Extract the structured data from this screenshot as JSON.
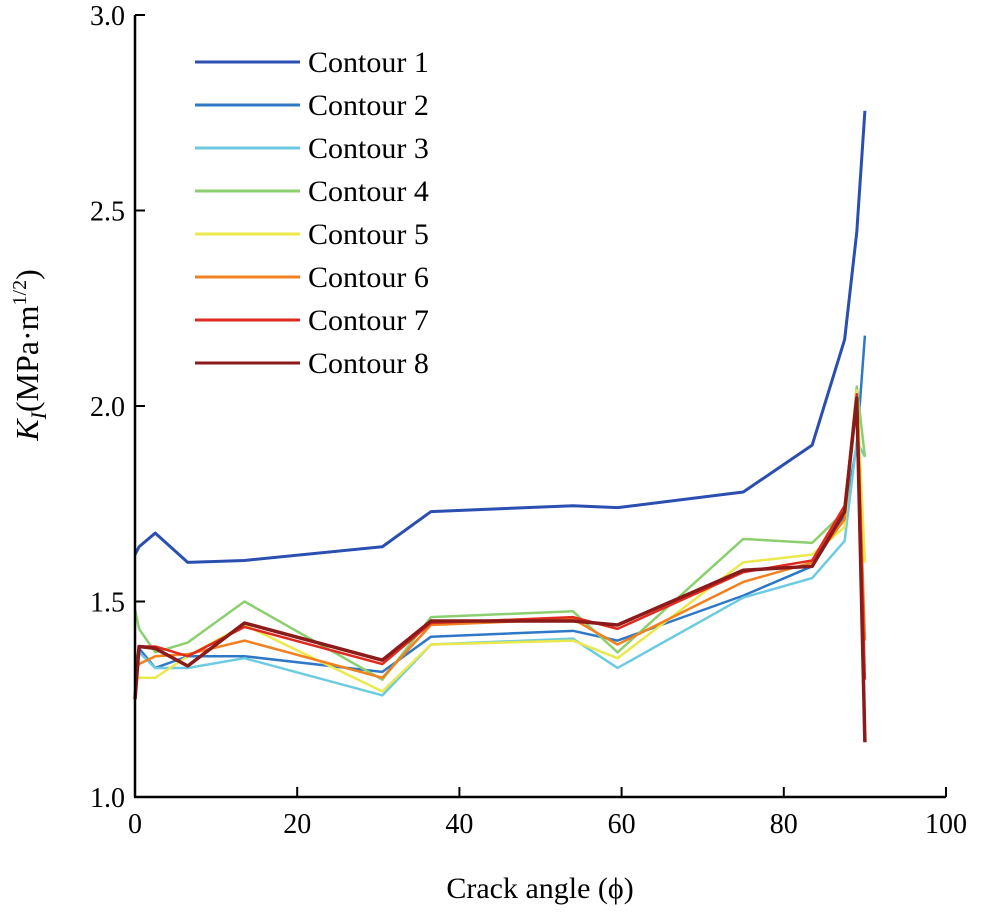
{
  "chart_data": {
    "type": "line",
    "title": "",
    "xlabel": "Crack angle (ϕ)",
    "ylabel": {
      "main": "K",
      "sub": "I",
      "unit": "(MPa·m",
      "sup": "1/2",
      "close": ")"
    },
    "xlim": [
      0,
      100
    ],
    "ylim": [
      1.0,
      3.0
    ],
    "xticks": [
      0,
      20,
      40,
      60,
      80,
      100
    ],
    "yticks": [
      1.0,
      1.5,
      2.0,
      2.5,
      3.0
    ],
    "ytick_labels": [
      "1.0",
      "1.5",
      "2.0",
      "2.5",
      "3.0"
    ],
    "grid": false,
    "legend_position": "top-left",
    "x": [
      0,
      0.5,
      2.5,
      6.5,
      13.5,
      30.5,
      36.5,
      54,
      59.5,
      75,
      83.5,
      87.5,
      89,
      90
    ],
    "series": [
      {
        "name": "Contour 1",
        "color": "#2a4fb0",
        "values": [
          1.62,
          1.64,
          1.675,
          1.6,
          1.605,
          1.64,
          1.73,
          1.745,
          1.74,
          1.78,
          1.9,
          2.17,
          2.445,
          2.755
        ]
      },
      {
        "name": "Contour 2",
        "color": "#2f78c8",
        "values": [
          1.33,
          1.38,
          1.33,
          1.36,
          1.36,
          1.32,
          1.41,
          1.425,
          1.4,
          1.515,
          1.59,
          1.72,
          1.9,
          2.18
        ]
      },
      {
        "name": "Contour 3",
        "color": "#6ccbe0",
        "values": [
          1.33,
          1.37,
          1.33,
          1.33,
          1.355,
          1.26,
          1.39,
          1.405,
          1.33,
          1.51,
          1.56,
          1.655,
          1.91,
          1.87
        ]
      },
      {
        "name": "Contour 4",
        "color": "#8ccf6f",
        "values": [
          1.48,
          1.43,
          1.37,
          1.395,
          1.5,
          1.3,
          1.46,
          1.475,
          1.37,
          1.66,
          1.65,
          1.73,
          2.05,
          1.87
        ]
      },
      {
        "name": "Contour 5",
        "color": "#eae84a",
        "values": [
          1.3,
          1.305,
          1.305,
          1.36,
          1.44,
          1.27,
          1.39,
          1.4,
          1.355,
          1.6,
          1.62,
          1.69,
          2.04,
          1.6
        ]
      },
      {
        "name": "Contour 6",
        "color": "#f08020",
        "values": [
          1.32,
          1.34,
          1.36,
          1.365,
          1.4,
          1.305,
          1.44,
          1.455,
          1.39,
          1.55,
          1.6,
          1.71,
          2.03,
          1.4
        ]
      },
      {
        "name": "Contour 7",
        "color": "#e02a20",
        "values": [
          1.25,
          1.385,
          1.385,
          1.36,
          1.435,
          1.34,
          1.445,
          1.46,
          1.43,
          1.575,
          1.605,
          1.745,
          2.03,
          1.3
        ]
      },
      {
        "name": "Contour 8",
        "color": "#8b1a1a",
        "values": [
          1.25,
          1.385,
          1.38,
          1.335,
          1.445,
          1.35,
          1.45,
          1.45,
          1.44,
          1.58,
          1.59,
          1.73,
          2.02,
          1.14
        ]
      }
    ]
  }
}
